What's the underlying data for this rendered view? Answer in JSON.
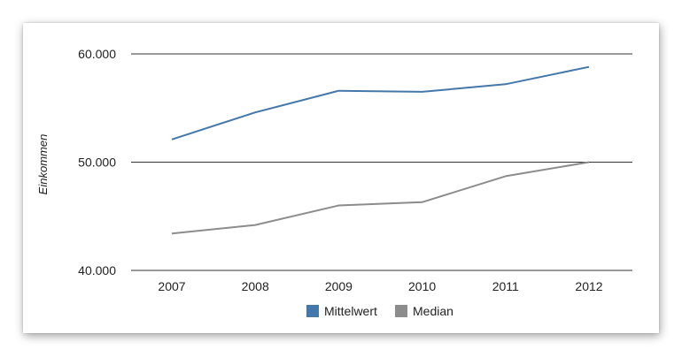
{
  "chart_data": {
    "type": "line",
    "title": "",
    "xlabel": "",
    "ylabel": "Einkommen",
    "x": [
      "2007",
      "2008",
      "2009",
      "2010",
      "2011",
      "2012"
    ],
    "ylim": [
      40000,
      60000
    ],
    "yticks": [
      {
        "value": 40000,
        "label": "40.000"
      },
      {
        "value": 50000,
        "label": "50.000"
      },
      {
        "value": 60000,
        "label": "60.000"
      }
    ],
    "grid": true,
    "legend_position": "bottom",
    "series": [
      {
        "name": "Mittelwert",
        "color": "#4477aa",
        "values": [
          52100,
          54600,
          56600,
          56500,
          57200,
          58800
        ]
      },
      {
        "name": "Median",
        "color": "#8c8c8c",
        "values": [
          43400,
          44200,
          46000,
          46300,
          48700,
          50000
        ]
      }
    ]
  }
}
